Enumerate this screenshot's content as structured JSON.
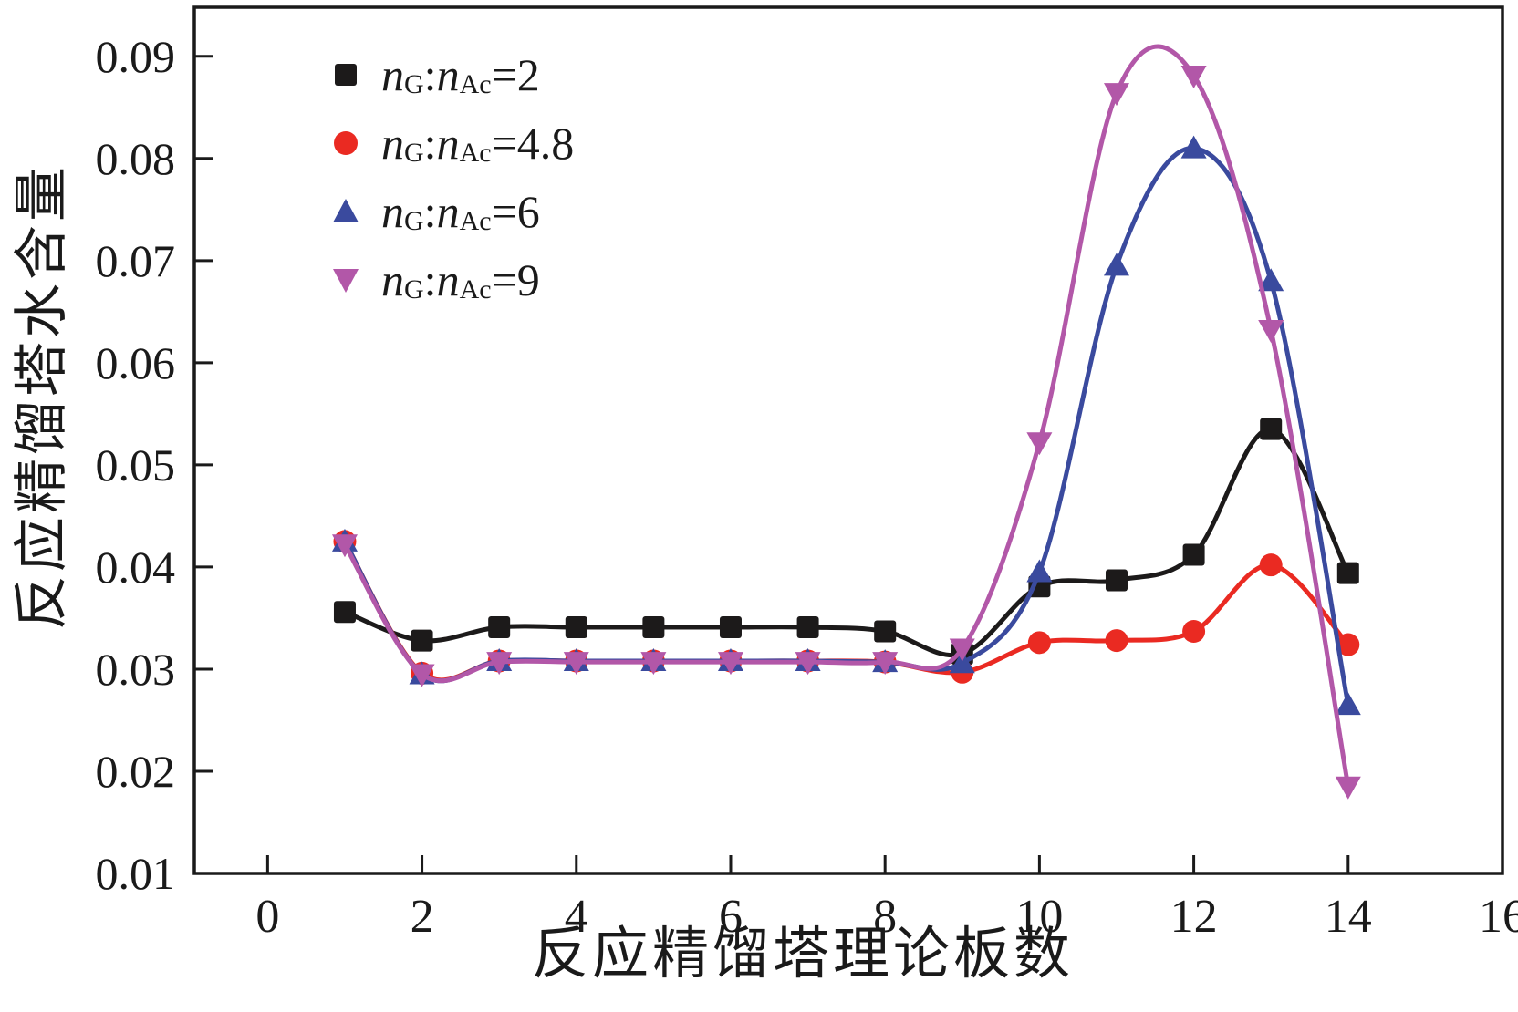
{
  "figure": {
    "background": "#ffffff",
    "axis_color": "#1a1a1a"
  },
  "chart_data": {
    "type": "line",
    "title": "",
    "xlabel": "反应精馏塔理论板数",
    "ylabel": "反应精馏塔水含量",
    "xlim": [
      -0.95,
      16
    ],
    "ylim": [
      0.01,
      0.0948
    ],
    "xticks": [
      0,
      2,
      4,
      6,
      8,
      10,
      12,
      14,
      16
    ],
    "yticks": [
      0.01,
      0.02,
      0.03,
      0.04,
      0.05,
      0.06,
      0.07,
      0.08,
      0.09
    ],
    "grid": false,
    "legend_position": "upper-left",
    "x": [
      1,
      2,
      3,
      4,
      5,
      6,
      7,
      8,
      9,
      10,
      11,
      12,
      13,
      14
    ],
    "series": [
      {
        "name": "nG:nAc=2",
        "color": "#1c1a1a",
        "marker": "square",
        "values": [
          0.0356,
          0.0328,
          0.0341,
          0.0341,
          0.0341,
          0.0341,
          0.0341,
          0.0337,
          0.0315,
          0.0381,
          0.0387,
          0.0412,
          0.0535,
          0.0394
        ]
      },
      {
        "name": "nG:nAc=4.8",
        "color": "#ea2a22",
        "marker": "circle",
        "values": [
          0.0425,
          0.0296,
          0.0308,
          0.0308,
          0.0308,
          0.0308,
          0.0308,
          0.0307,
          0.0297,
          0.0326,
          0.0328,
          0.0337,
          0.0402,
          0.0324
        ]
      },
      {
        "name": "nG:nAc=6",
        "color": "#3a4a9e",
        "marker": "triangle-up",
        "values": [
          0.0425,
          0.0295,
          0.0308,
          0.0308,
          0.0308,
          0.0308,
          0.0308,
          0.0307,
          0.0306,
          0.0395,
          0.0695,
          0.081,
          0.068,
          0.0265
        ]
      },
      {
        "name": "nG:nAc=9",
        "color": "#b257a8",
        "marker": "triangle-down",
        "values": [
          0.0422,
          0.0295,
          0.0307,
          0.0307,
          0.0307,
          0.0307,
          0.0307,
          0.0307,
          0.032,
          0.0522,
          0.0864,
          0.0881,
          0.0632,
          0.0185
        ]
      }
    ]
  },
  "legend": {
    "items": [
      {
        "var1": "n",
        "sub1": "G",
        "colon": ":",
        "var2": "n",
        "sub2": "Ac",
        "eq": "=2"
      },
      {
        "var1": "n",
        "sub1": "G",
        "colon": ":",
        "var2": "n",
        "sub2": "Ac",
        "eq": "=4.8"
      },
      {
        "var1": "n",
        "sub1": "G",
        "colon": ":",
        "var2": "n",
        "sub2": "Ac",
        "eq": "=6"
      },
      {
        "var1": "n",
        "sub1": "G",
        "colon": ":",
        "var2": "n",
        "sub2": "Ac",
        "eq": "=9"
      }
    ]
  },
  "labels": {
    "xlabel": "反应精馏塔理论板数",
    "ylabel": "反应精馏塔水含量"
  }
}
